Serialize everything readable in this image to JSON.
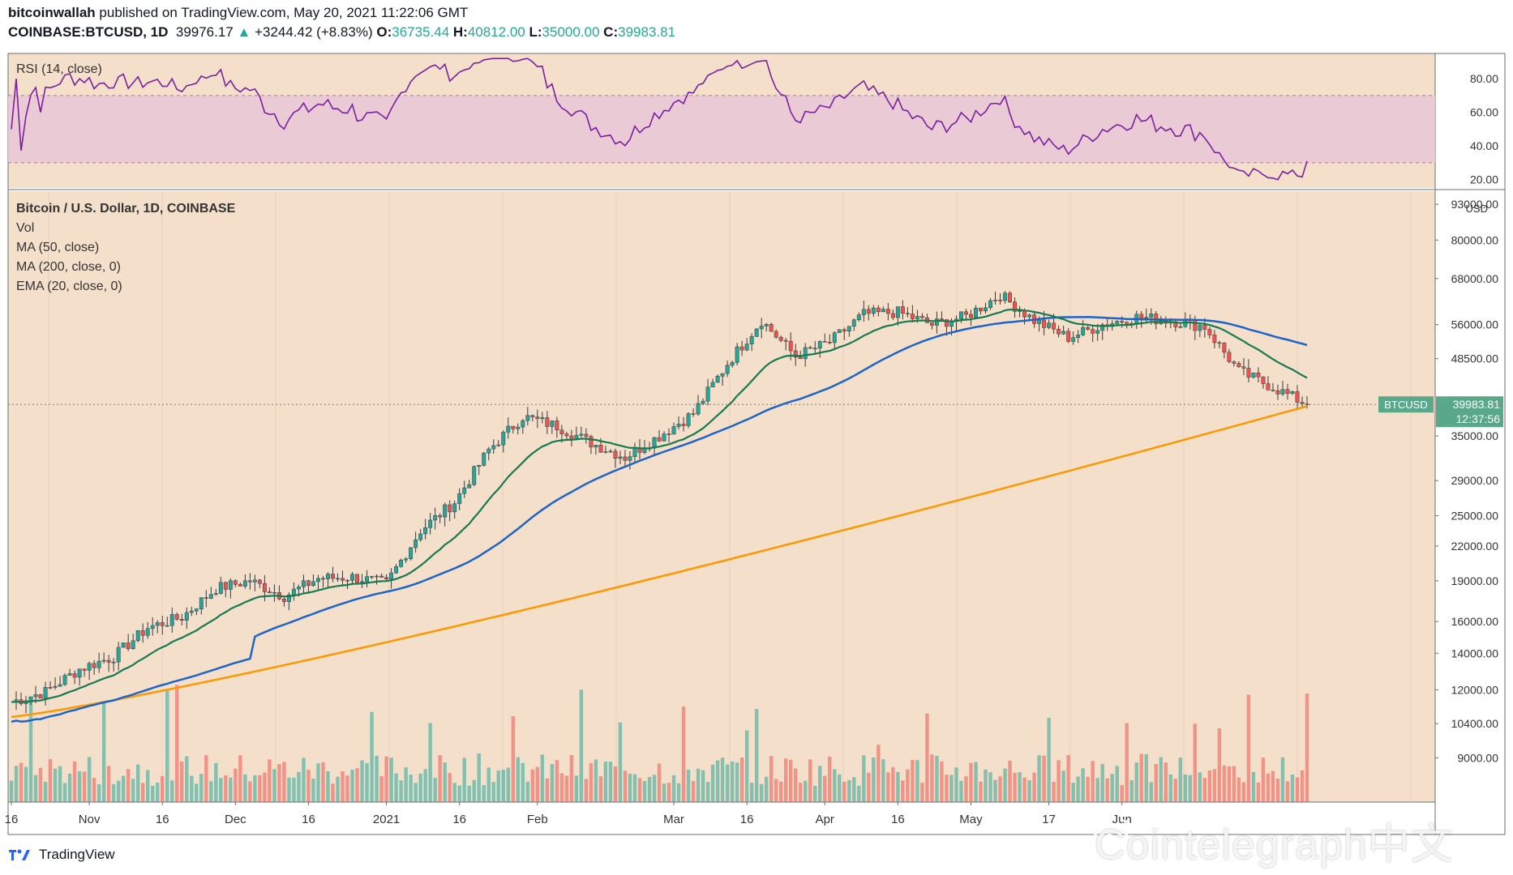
{
  "header": {
    "publisher": "bitcoinwallah",
    "published_text": "published on TradingView.com, May 20, 2021 11:22:06 GMT",
    "symbol": "COINBASE:BTCUSD, 1D",
    "last": "39976.17",
    "change": "+3244.42 (+8.83%)",
    "o_label": "O:",
    "o_value": "36735.44",
    "h_label": "H:",
    "h_value": "40812.00",
    "l_label": "L:",
    "l_value": "35000.00",
    "c_label": "C:",
    "c_value": "39983.81"
  },
  "rsi_panel": {
    "label": "RSI (14, close)",
    "ticks": [
      "80.00",
      "60.00",
      "40.00",
      "20.00"
    ],
    "band": [
      30,
      70
    ]
  },
  "price_panel": {
    "legend": [
      "Bitcoin / U.S. Dollar, 1D, COINBASE",
      "Vol",
      "MA (50, close)",
      "MA (200, close, 0)",
      "EMA (20, close, 0)"
    ],
    "currency": "USD",
    "price_ticks": [
      "93000.00",
      "80000.00",
      "68000.00",
      "56000.00",
      "48500.00",
      "35000.00",
      "29000.00",
      "25000.00",
      "22000.00",
      "19000.00",
      "16000.00",
      "14000.00",
      "12000.00",
      "10400.00",
      "9000.00"
    ],
    "last_label_symbol": "BTCUSD",
    "last_label_price": "39983.81",
    "last_label_time": "12:37:56"
  },
  "x_axis": {
    "labels": [
      "16",
      "Nov",
      "16",
      "Dec",
      "16",
      "2021",
      "16",
      "Feb",
      "Mar",
      "16",
      "Apr",
      "16",
      "May",
      "17",
      "Jun"
    ]
  },
  "footer": {
    "brand": "TradingView",
    "watermark": "Cointelegraph中文"
  },
  "colors": {
    "background": "#f3dfca",
    "up": "#26a69a",
    "down": "#ef5350",
    "ma50": "#1e64c8",
    "ma200": "#ff9800",
    "ema20": "#177a51",
    "rsi": "#7b1fa2",
    "rsi_band": "#e8c8d6"
  },
  "chart_data": {
    "type": "candlestick",
    "symbol": "BTCUSD",
    "timeframe": "1D",
    "dates_approx": [
      "2020-10-16",
      "2021-05-20"
    ],
    "weekly_close_approx": [
      11400,
      11900,
      13100,
      13800,
      15600,
      16300,
      18400,
      19000,
      17800,
      19200,
      19300,
      18800,
      23500,
      26500,
      33000,
      38000,
      36500,
      34000,
      32000,
      35000,
      38500,
      47500,
      57000,
      49000,
      52000,
      58500,
      59000,
      56000,
      58000,
      63500,
      57000,
      53000,
      56000,
      57800,
      57000,
      55500,
      46000,
      43000,
      39983.81
    ],
    "ma50_end": 55200,
    "ma200_end": 39700,
    "ema20_end": 48600,
    "rsi_end": 31,
    "last_price": 39983.81
  }
}
